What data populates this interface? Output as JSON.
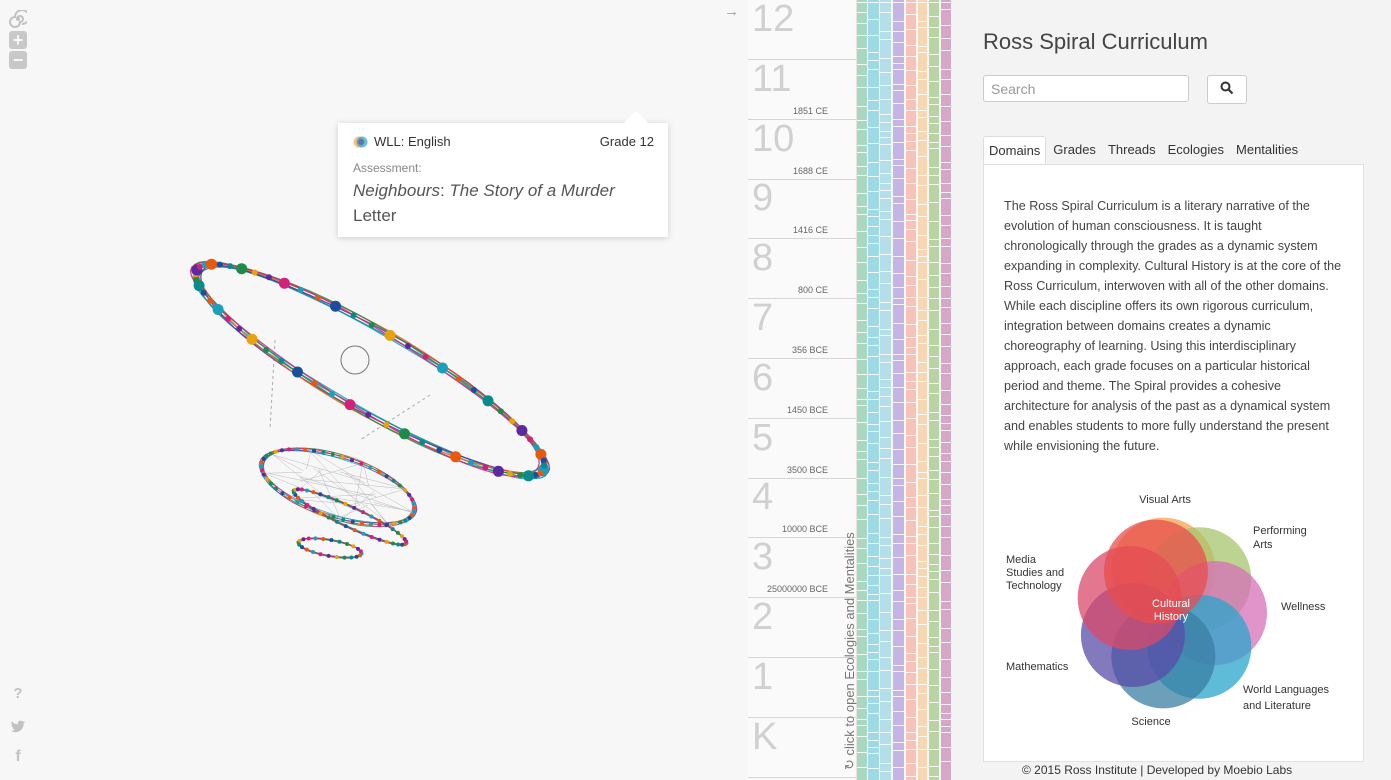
{
  "toolbar": {
    "icons": [
      "spiral-icon",
      "zoom-in-icon",
      "zoom-out-icon"
    ],
    "bottom_icons": [
      "help-icon",
      "twitter-icon",
      "facebook-icon"
    ]
  },
  "tooltip": {
    "domain": "WLL: English",
    "grade": "Grade 12",
    "type": "Assessment:",
    "title_italic_1": "Neighbours",
    "title_colon": ": ",
    "title_italic_2": "The Story of a Murder",
    "title_rest": " Letter"
  },
  "grades": [
    {
      "label": "12",
      "date": ""
    },
    {
      "label": "11",
      "date": "1851 CE"
    },
    {
      "label": "10",
      "date": "1688 CE"
    },
    {
      "label": "9",
      "date": "1416 CE"
    },
    {
      "label": "8",
      "date": "800 CE"
    },
    {
      "label": "7",
      "date": "356 BCE"
    },
    {
      "label": "6",
      "date": "1450 BCE"
    },
    {
      "label": "5",
      "date": "3500 BCE"
    },
    {
      "label": "4",
      "date": "10000 BCE"
    },
    {
      "label": "3",
      "date": "25000000 BCE"
    },
    {
      "label": "2",
      "date": ""
    },
    {
      "label": "1",
      "date": ""
    },
    {
      "label": "K",
      "date": ""
    }
  ],
  "open_hint": "click to open Ecologies and Mentalities",
  "panel": {
    "title": "Ross Spiral Curriculum",
    "search_placeholder": "Search",
    "tabs": [
      "Domains",
      "Grades",
      "Threads",
      "Ecologies",
      "Mentalities"
    ],
    "description": "The Ross Spiral Curriculum is a literary narrative of the evolution of human consciousness. It is taught chronologically through the grades as a dynamic system expanding in complexity. Cultural History is at the core of the Ross Curriculum, interwoven with all of the other domains. While each discipline offers its own rigorous curriculum, integration between domains creates a dynamic choreography of learning. Using this interdisciplinary approach, each grade focuses on a particular historical period and theme. The Spiral provides a cohesive architecture for analysis of the past as a dynamical system and enables students to more fully understand the present while envisioning the future.",
    "venn": {
      "center": [
        "Cultural",
        "History"
      ],
      "labels": {
        "visual_arts": "Visual Arts",
        "performing_1": "Performing",
        "performing_2": "Arts",
        "wellness": "Wellness",
        "wll_1": "World Languages",
        "wll_2": "and Literature",
        "science": "Science",
        "math": "Mathematics",
        "media_1": "Media",
        "media_2": "Studies and",
        "media_3": "Technology"
      },
      "colors": [
        "#f7a54b",
        "#a6c46c",
        "#d570b8",
        "#2aa5cc",
        "#3a7fa3",
        "#5a4ca8",
        "#d94a6a",
        "#e84d4d"
      ]
    }
  },
  "stripe_colors": [
    "#a8d8c0",
    "#9fd9e6",
    "#b5dfe8",
    "#c3b6e4",
    "#f7c2b8",
    "#f5d7b4",
    "#b9d4a4",
    "#d6a8c8"
  ],
  "footer": "© 2015 Ross Institute | Developed by Moebio Labs"
}
